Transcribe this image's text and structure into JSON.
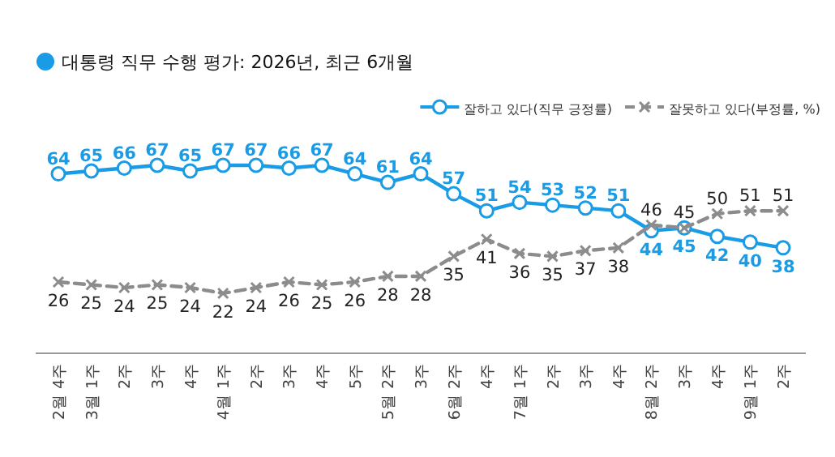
{
  "chart_data": {
    "type": "line",
    "title": "대통령 직무 수행 평가: 2026년, 최근 6개월",
    "categories": [
      "2월 4주",
      "3월 1주",
      "2주",
      "3주",
      "4주",
      "4월 1주",
      "2주",
      "3주",
      "4주",
      "5주",
      "5월 2주",
      "3주",
      "6월 2주",
      "4주",
      "7월 1주",
      "2주",
      "3주",
      "4주",
      "8월 2주",
      "3주",
      "4주",
      "9월 1주",
      "2주"
    ],
    "series": [
      {
        "name": "잘하고 있다(직무 긍정률)",
        "color": "#1a9be6",
        "marker": "circle",
        "line_style": "solid",
        "values": [
          64,
          65,
          66,
          67,
          65,
          67,
          67,
          66,
          67,
          64,
          61,
          64,
          57,
          51,
          54,
          53,
          52,
          51,
          44,
          45,
          42,
          40,
          38
        ]
      },
      {
        "name": "잘못하고 있다(부정률, %)",
        "color": "#8c8c8c",
        "marker": "cross",
        "line_style": "dashed",
        "values": [
          26,
          25,
          24,
          25,
          24,
          22,
          24,
          26,
          25,
          26,
          28,
          28,
          35,
          41,
          36,
          35,
          37,
          38,
          46,
          45,
          50,
          51,
          51
        ]
      }
    ],
    "data_labels": true,
    "legend": "top right"
  }
}
